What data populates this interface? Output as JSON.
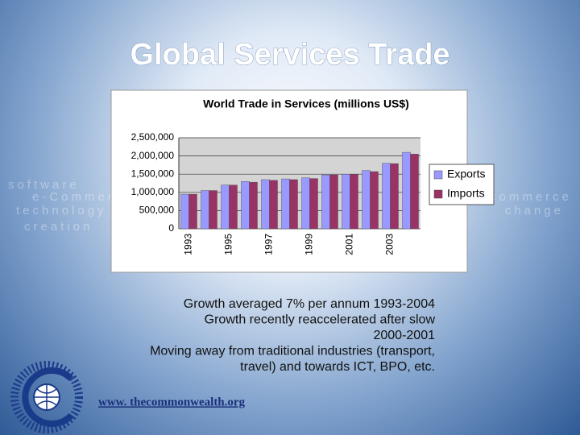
{
  "slide_title": "Global Services Trade",
  "background_words": [
    "software",
    "e-Commerce",
    "technology",
    "creation",
    "commerce",
    "change"
  ],
  "bullets": [
    "Growth averaged 7% per annum 1993-2004",
    "Growth recently reaccelerated after slow 2000-2001",
    "Moving away from traditional industries (transport, travel) and towards ICT, BPO, etc."
  ],
  "url": "www. thecommonwealth.org",
  "chart_data": {
    "type": "bar",
    "title": "World Trade in Services (millions US$)",
    "categories": [
      "1993",
      null,
      "1995",
      null,
      "1997",
      null,
      "1999",
      null,
      "2001",
      null,
      "2003",
      null
    ],
    "series": [
      {
        "name": "Exports",
        "color": "#9999ff",
        "values": [
          950000,
          1050000,
          1200000,
          1300000,
          1350000,
          1370000,
          1400000,
          1480000,
          1500000,
          1600000,
          1800000,
          2100000
        ]
      },
      {
        "name": "Imports",
        "color": "#993366",
        "values": [
          950000,
          1050000,
          1200000,
          1280000,
          1330000,
          1350000,
          1380000,
          1480000,
          1500000,
          1570000,
          1790000,
          2050000
        ]
      }
    ],
    "ylim": [
      0,
      2500000
    ],
    "yticks": [
      0,
      {
        "value": 500000,
        "label": "500,000"
      },
      {
        "value": 1000000,
        "label": "1,000,000"
      },
      {
        "value": 1500000,
        "label": "1,500,000"
      },
      {
        "value": 2000000,
        "label": "2,000,000"
      },
      {
        "value": 2500000,
        "label": "2,500,000"
      }
    ],
    "grid": true,
    "legend": "right"
  }
}
